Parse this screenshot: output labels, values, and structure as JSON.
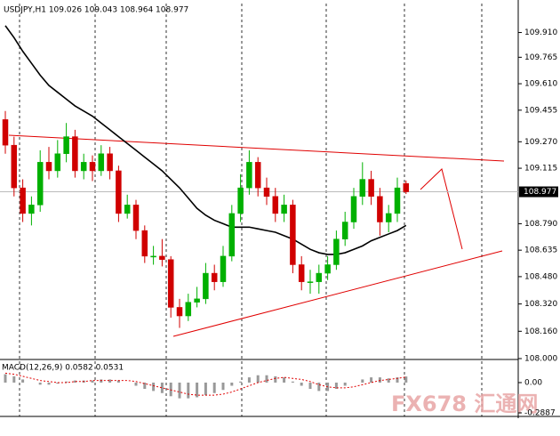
{
  "chart_data": {
    "type": "candlestick",
    "title": "USDJPY,H1  109.026 109.043 108.964 108.977",
    "open": [
      109.4,
      109.25,
      109.0,
      108.85,
      108.9,
      109.15,
      109.1,
      109.2,
      109.3,
      109.1,
      109.15,
      109.1,
      109.2,
      109.1,
      108.85,
      108.9,
      108.75,
      108.6,
      108.6,
      108.58,
      108.3,
      108.25,
      108.33,
      108.35,
      108.5,
      108.45,
      108.6,
      108.85,
      109.0,
      109.15,
      109.0,
      108.95,
      108.85,
      108.9,
      108.55,
      108.45,
      108.45,
      108.5,
      108.55,
      108.7,
      108.8,
      108.95,
      109.05,
      108.95,
      108.8,
      108.85,
      109.026
    ],
    "high": [
      109.45,
      109.3,
      109.05,
      108.95,
      109.22,
      109.24,
      109.28,
      109.38,
      109.34,
      109.2,
      109.19,
      109.25,
      109.24,
      109.13,
      108.96,
      108.93,
      108.78,
      108.66,
      108.7,
      108.6,
      108.35,
      108.38,
      108.42,
      108.56,
      108.55,
      108.66,
      108.9,
      109.08,
      109.22,
      109.18,
      109.06,
      109.0,
      108.96,
      108.93,
      108.6,
      108.52,
      108.55,
      108.6,
      108.75,
      108.86,
      109.0,
      109.15,
      109.1,
      109.0,
      108.9,
      109.06,
      109.043
    ],
    "low": [
      109.2,
      108.95,
      108.8,
      108.78,
      108.86,
      109.05,
      109.06,
      109.15,
      109.06,
      109.05,
      109.04,
      109.07,
      109.05,
      108.8,
      108.82,
      108.7,
      108.56,
      108.55,
      108.54,
      108.24,
      108.18,
      108.22,
      108.3,
      108.32,
      108.4,
      108.42,
      108.57,
      108.8,
      108.96,
      108.95,
      108.9,
      108.8,
      108.8,
      108.5,
      108.4,
      108.38,
      108.38,
      108.46,
      108.52,
      108.66,
      108.76,
      108.9,
      108.9,
      108.72,
      108.74,
      108.8,
      108.964
    ],
    "close": [
      109.25,
      109.0,
      108.85,
      108.9,
      109.15,
      109.1,
      109.2,
      109.3,
      109.1,
      109.15,
      109.1,
      109.2,
      109.1,
      108.85,
      108.9,
      108.75,
      108.6,
      108.6,
      108.58,
      108.3,
      108.25,
      108.33,
      108.35,
      108.5,
      108.45,
      108.6,
      108.85,
      109.0,
      109.15,
      109.0,
      108.95,
      108.85,
      108.9,
      108.55,
      108.45,
      108.45,
      108.5,
      108.55,
      108.7,
      108.8,
      108.95,
      109.05,
      108.95,
      108.8,
      108.85,
      109.0,
      108.977
    ],
    "moving_average": [
      109.95,
      109.88,
      109.8,
      109.73,
      109.66,
      109.6,
      109.56,
      109.52,
      109.48,
      109.45,
      109.42,
      109.38,
      109.34,
      109.3,
      109.26,
      109.22,
      109.18,
      109.14,
      109.1,
      109.05,
      109.0,
      108.94,
      108.88,
      108.84,
      108.81,
      108.79,
      108.77,
      108.77,
      108.77,
      108.76,
      108.75,
      108.74,
      108.72,
      108.7,
      108.67,
      108.64,
      108.62,
      108.61,
      108.61,
      108.62,
      108.64,
      108.66,
      108.69,
      108.71,
      108.73,
      108.75,
      108.78
    ],
    "current_price": 108.977,
    "ylim": [
      108.0,
      110.09
    ],
    "yticks": [
      {
        "value": 109.91,
        "label": "109.910"
      },
      {
        "value": 109.765,
        "label": "109.765"
      },
      {
        "value": 109.61,
        "label": "109.610"
      },
      {
        "value": 109.455,
        "label": "109.455"
      },
      {
        "value": 109.27,
        "label": "109.270"
      },
      {
        "value": 109.115,
        "label": "109.115"
      },
      {
        "value": 108.79,
        "label": "108.790"
      },
      {
        "value": 108.635,
        "label": "108.635"
      },
      {
        "value": 108.48,
        "label": "108.480"
      },
      {
        "value": 108.32,
        "label": "108.320"
      },
      {
        "value": 108.16,
        "label": "108.160"
      },
      {
        "value": 108.0,
        "label": "108.000"
      }
    ],
    "bull_color": "#00b000",
    "bear_color": "#d00000",
    "macd": {
      "title": "MACD(12,26,9) 0.0582 0.0531",
      "values": [
        0.08,
        0.06,
        0.03,
        0.0,
        -0.02,
        -0.02,
        -0.01,
        0.01,
        0.02,
        0.02,
        0.02,
        0.03,
        0.03,
        0.02,
        0.0,
        -0.03,
        -0.06,
        -0.08,
        -0.1,
        -0.13,
        -0.15,
        -0.15,
        -0.14,
        -0.12,
        -0.1,
        -0.07,
        -0.03,
        0.01,
        0.05,
        0.07,
        0.07,
        0.06,
        0.05,
        0.01,
        -0.03,
        -0.06,
        -0.08,
        -0.08,
        -0.06,
        -0.03,
        0.0,
        0.03,
        0.05,
        0.05,
        0.04,
        0.05,
        0.0582
      ],
      "signal": [
        0.09,
        0.08,
        0.06,
        0.04,
        0.02,
        0.01,
        0.0,
        0.0,
        0.01,
        0.01,
        0.02,
        0.02,
        0.02,
        0.02,
        0.02,
        0.01,
        -0.01,
        -0.03,
        -0.05,
        -0.07,
        -0.09,
        -0.11,
        -0.12,
        -0.12,
        -0.12,
        -0.11,
        -0.09,
        -0.06,
        -0.03,
        0.0,
        0.02,
        0.04,
        0.05,
        0.04,
        0.03,
        0.01,
        -0.02,
        -0.04,
        -0.05,
        -0.05,
        -0.04,
        -0.02,
        0.0,
        0.02,
        0.03,
        0.04,
        0.0531
      ],
      "ylim": [
        -0.2887,
        0.195
      ],
      "yticks": [
        {
          "value": 0,
          "label": "0.00"
        },
        -0.2887
      ]
    },
    "watermark": "FX678 汇通网"
  }
}
